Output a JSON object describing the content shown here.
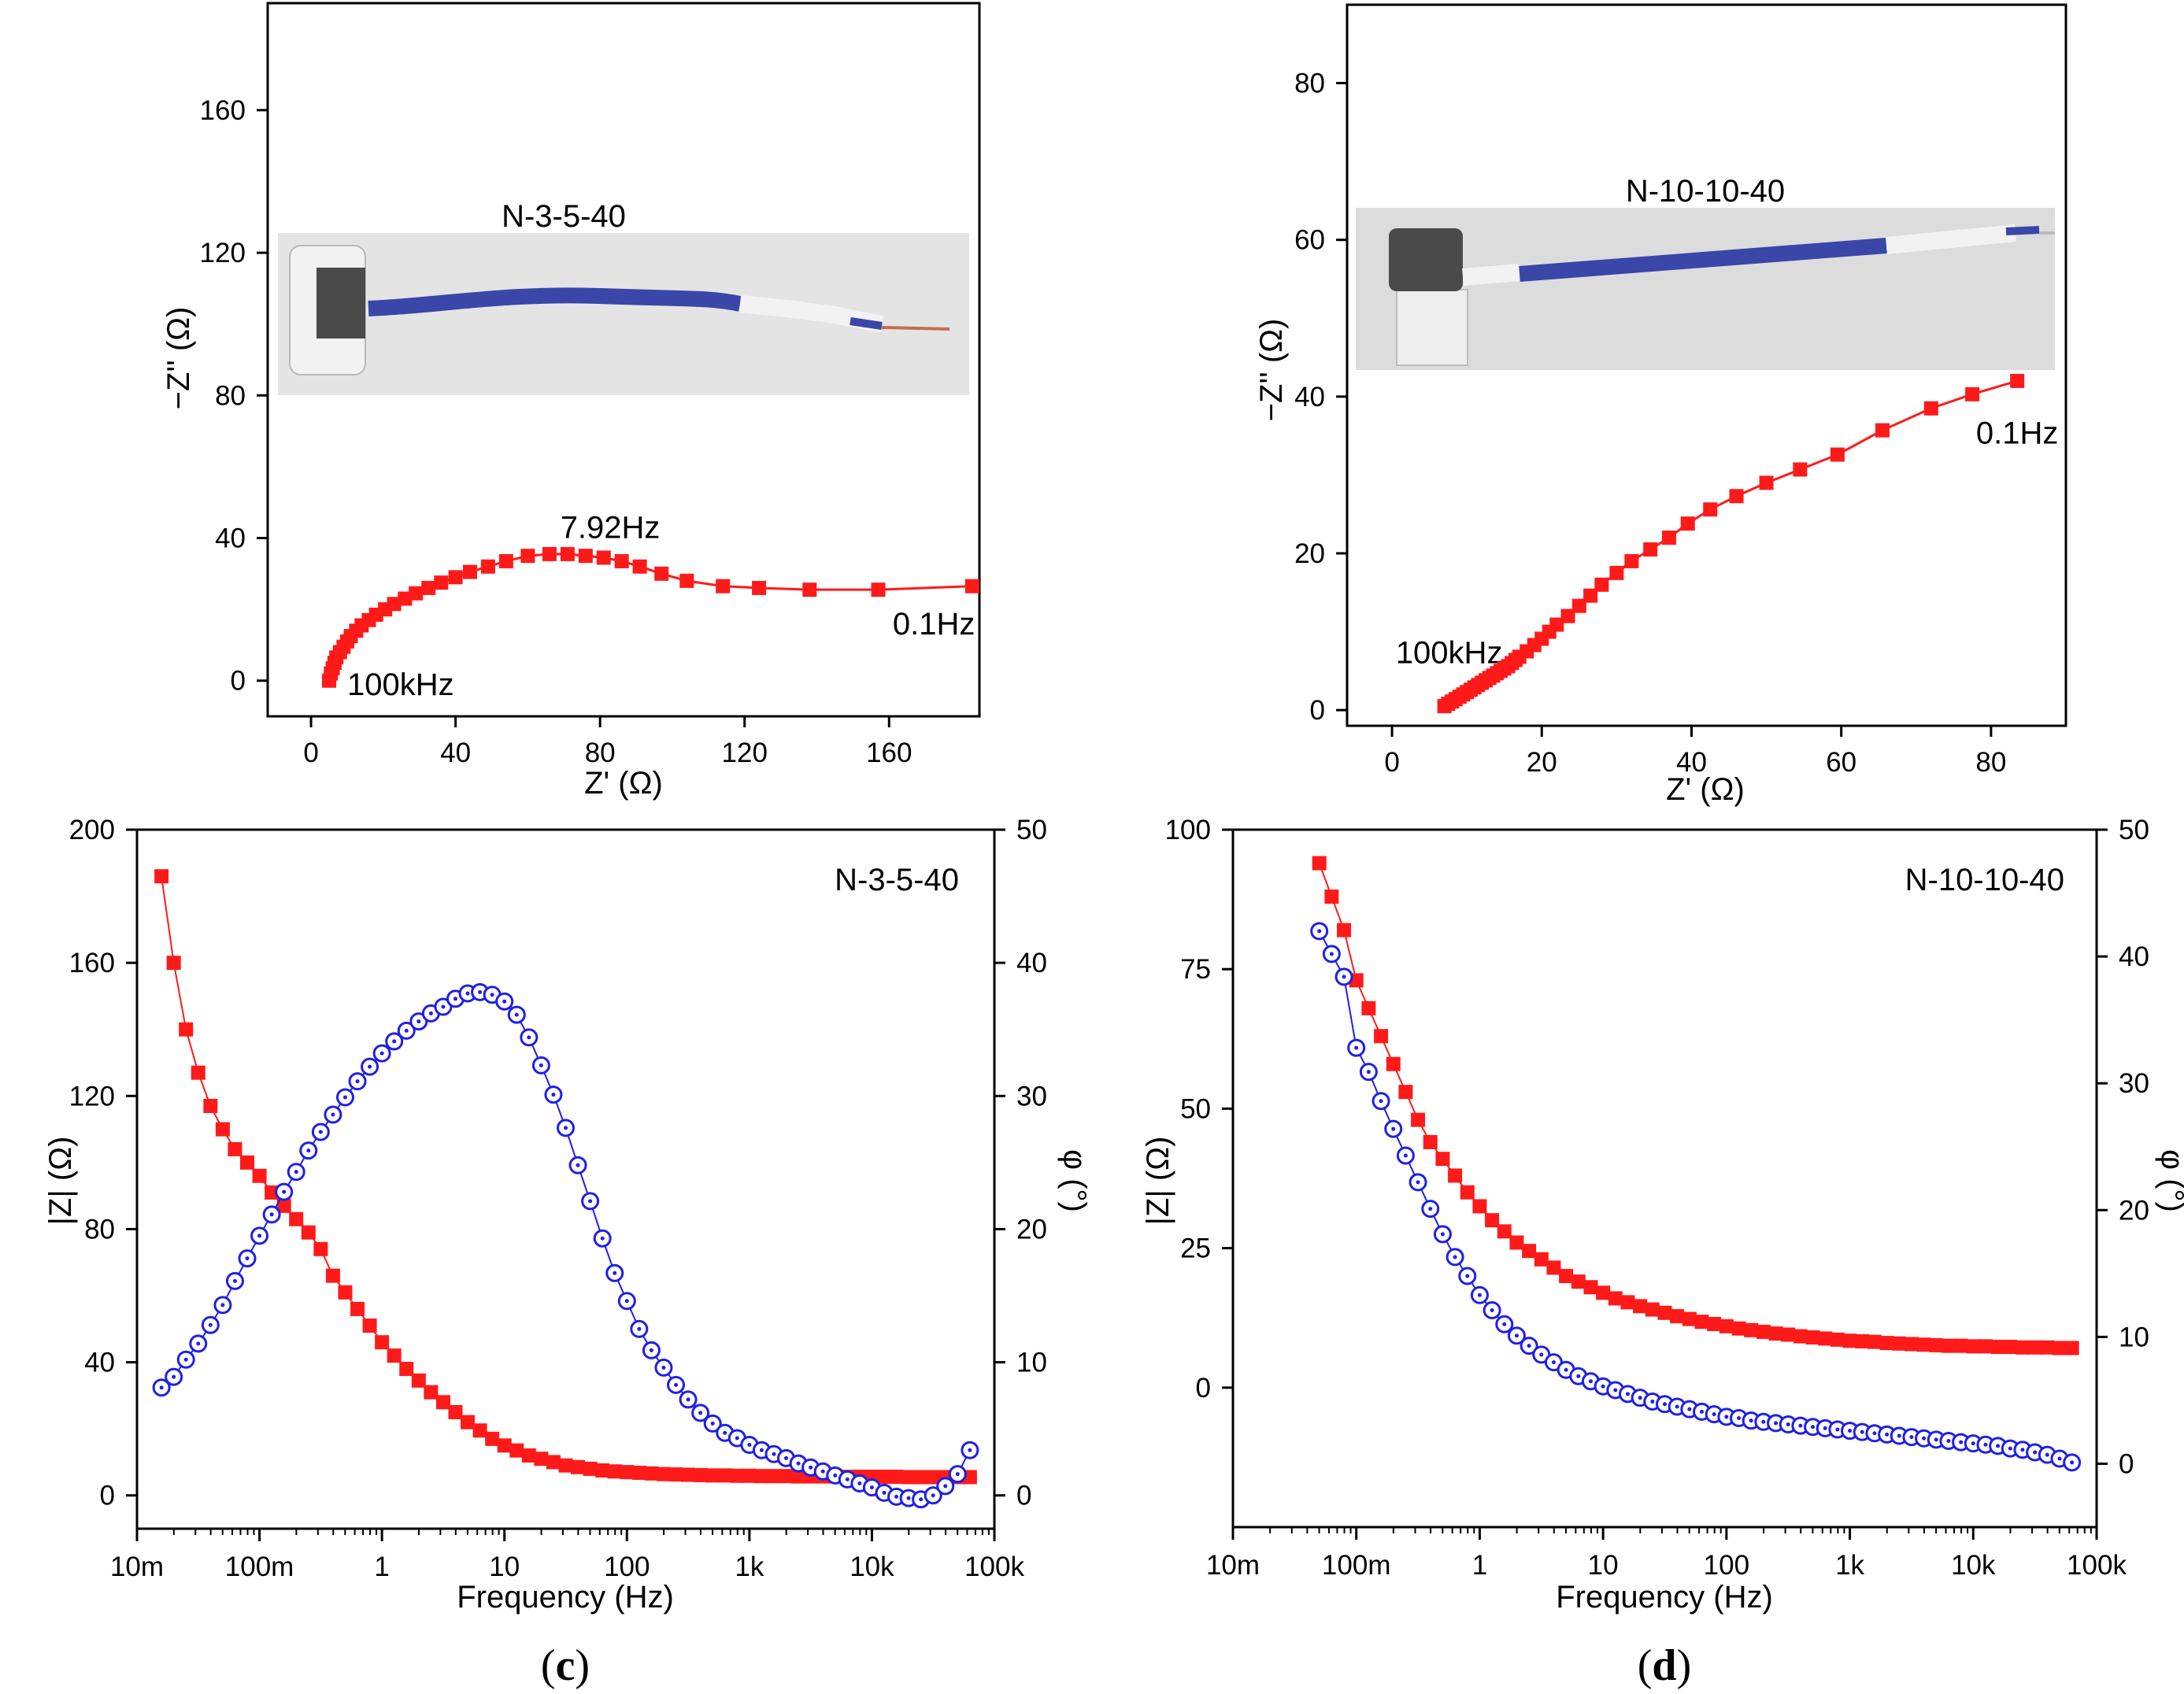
{
  "colors": {
    "red": "#ff1a1a",
    "blue": "#1f1fe6",
    "axis": "#000000",
    "cable": "#3a46a8"
  },
  "chart_data": [
    {
      "id": "a",
      "type": "scatter",
      "sample": "N-3-5-40",
      "xlabel": "Z' (Ω)",
      "ylabel": "−Z'' (Ω)",
      "xlim": [
        -12,
        185
      ],
      "ylim": [
        -10,
        190
      ],
      "xticks": [
        0,
        40,
        80,
        120,
        160
      ],
      "yticks": [
        0,
        40,
        80,
        120,
        160
      ],
      "annotations": [
        {
          "text": "7.92Hz",
          "x": 69,
          "y": 40
        },
        {
          "text": "0.1Hz",
          "x": 161,
          "y": 13
        },
        {
          "text": "100kHz",
          "x": 10,
          "y": -4
        }
      ],
      "series": [
        {
          "name": "Nyquist",
          "color": "#ff1a1a",
          "marker": "square",
          "x": [
            5,
            5.5,
            6,
            6.5,
            7,
            8,
            9,
            10,
            11,
            12.5,
            14,
            16,
            18,
            20.5,
            23,
            26,
            29,
            32.5,
            36,
            40,
            44,
            49,
            54,
            60,
            66,
            71,
            76,
            81,
            86,
            91,
            97,
            104,
            114,
            124,
            138,
            157,
            183
          ],
          "y": [
            0,
            2,
            3.5,
            5,
            6.5,
            8,
            9.5,
            11,
            12.5,
            14,
            15.5,
            17,
            18.5,
            20,
            21.5,
            23,
            24.5,
            26,
            27.5,
            29,
            30.5,
            32,
            33.5,
            35,
            35.5,
            35.5,
            35,
            34.5,
            33.5,
            32,
            30,
            28,
            26.5,
            26,
            25.5,
            25.5,
            26.5
          ]
        }
      ],
      "photo_label": "N-3-5-40"
    },
    {
      "id": "b",
      "type": "scatter",
      "sample": "N-10-10-40",
      "xlabel": "Z' (Ω)",
      "ylabel": "−Z'' (Ω)",
      "xlim": [
        -6,
        90
      ],
      "ylim": [
        -2,
        90
      ],
      "xticks": [
        0,
        20,
        40,
        60,
        80
      ],
      "yticks": [
        0,
        20,
        40,
        60,
        80
      ],
      "annotations": [
        {
          "text": "0.1Hz",
          "x": 78,
          "y": 34
        },
        {
          "text": "100kHz",
          "x": 0.5,
          "y": 6
        }
      ],
      "series": [
        {
          "name": "Nyquist",
          "color": "#ff1a1a",
          "marker": "square",
          "x": [
            7,
            7.5,
            8,
            8.5,
            9,
            9.5,
            10,
            10.5,
            11,
            11.5,
            12,
            12.5,
            13,
            13.5,
            14,
            14.5,
            15,
            15.5,
            16,
            16.5,
            17,
            18,
            19,
            20,
            21,
            22,
            23.5,
            25,
            26.5,
            28,
            30,
            32,
            34.5,
            37,
            39.5,
            42.5,
            46,
            50,
            54.5,
            59.5,
            65.5,
            72,
            77.5,
            83.5
          ],
          "y": [
            0.5,
            0.8,
            1.1,
            1.4,
            1.7,
            2,
            2.3,
            2.6,
            2.9,
            3.2,
            3.5,
            3.8,
            4.1,
            4.4,
            4.7,
            5,
            5.3,
            5.6,
            6,
            6.4,
            6.8,
            7.5,
            8.3,
            9.1,
            10,
            10.9,
            12,
            13.3,
            14.6,
            16,
            17.5,
            19,
            20.5,
            22,
            23.8,
            25.6,
            27.3,
            29,
            30.7,
            32.6,
            35.7,
            38.5,
            40.3,
            42
          ]
        }
      ],
      "photo_label": "N-10-10-40"
    },
    {
      "id": "c",
      "type": "scatter",
      "sample": "N-3-5-40",
      "xlabel": "Frequency (Hz)",
      "ylabel": "|Z| (Ω)",
      "ylabel2": "φ (°)",
      "xlim_log10": [
        -2,
        5
      ],
      "ylim": [
        -10,
        200
      ],
      "y2lim": [
        -2.5,
        50
      ],
      "xticks": [
        "10m",
        "100m",
        "1",
        "10",
        "100",
        "1k",
        "10k",
        "100k"
      ],
      "yticks": [
        0,
        40,
        80,
        120,
        160,
        200
      ],
      "y2ticks": [
        0,
        10,
        20,
        30,
        40,
        50
      ],
      "series": [
        {
          "name": "|Z|",
          "color": "#ff1a1a",
          "marker": "square",
          "axis": "left",
          "logf": [
            -1.8,
            -1.7,
            -1.6,
            -1.5,
            -1.4,
            -1.3,
            -1.2,
            -1.1,
            -1.0,
            -0.9,
            -0.8,
            -0.7,
            -0.6,
            -0.5,
            -0.4,
            -0.3,
            -0.2,
            -0.1,
            0.0,
            0.1,
            0.2,
            0.3,
            0.4,
            0.5,
            0.6,
            0.7,
            0.8,
            0.9,
            1.0,
            1.1,
            1.2,
            1.3,
            1.4,
            1.5,
            1.6,
            1.7,
            1.8,
            1.9,
            2.0,
            2.1,
            2.2,
            2.3,
            2.4,
            2.5,
            2.6,
            2.7,
            2.8,
            2.9,
            3.0,
            3.1,
            3.2,
            3.3,
            3.4,
            3.5,
            3.6,
            3.7,
            3.8,
            3.9,
            4.0,
            4.1,
            4.2,
            4.3,
            4.4,
            4.5,
            4.6,
            4.7,
            4.8
          ],
          "values": [
            186,
            160,
            140,
            127,
            117,
            110,
            104,
            100,
            96,
            91,
            87,
            83,
            79,
            74,
            66,
            61,
            56,
            51,
            46,
            42,
            38,
            34.5,
            31,
            28,
            25,
            22,
            19.5,
            17,
            15,
            13.5,
            12,
            11,
            10,
            9,
            8.5,
            8,
            7.5,
            7.2,
            7,
            6.8,
            6.6,
            6.4,
            6.3,
            6.2,
            6.1,
            6,
            6,
            5.9,
            5.9,
            5.8,
            5.8,
            5.8,
            5.7,
            5.7,
            5.7,
            5.7,
            5.6,
            5.6,
            5.6,
            5.6,
            5.6,
            5.5,
            5.5,
            5.5,
            5.5,
            5.5,
            5.5
          ]
        },
        {
          "name": "φ",
          "color": "#1f1fe6",
          "marker": "circle-dot",
          "axis": "right",
          "logf": [
            -1.8,
            -1.7,
            -1.6,
            -1.5,
            -1.4,
            -1.3,
            -1.2,
            -1.1,
            -1.0,
            -0.9,
            -0.8,
            -0.7,
            -0.6,
            -0.5,
            -0.4,
            -0.3,
            -0.2,
            -0.1,
            0.0,
            0.1,
            0.2,
            0.3,
            0.4,
            0.5,
            0.6,
            0.7,
            0.8,
            0.9,
            1.0,
            1.1,
            1.2,
            1.3,
            1.4,
            1.5,
            1.6,
            1.7,
            1.8,
            1.9,
            2.0,
            2.1,
            2.2,
            2.3,
            2.4,
            2.5,
            2.6,
            2.7,
            2.8,
            2.9,
            3.0,
            3.1,
            3.2,
            3.3,
            3.4,
            3.5,
            3.6,
            3.7,
            3.8,
            3.9,
            4.0,
            4.1,
            4.2,
            4.3,
            4.4,
            4.5,
            4.6,
            4.7,
            4.8
          ],
          "values": [
            8.1,
            8.9,
            10.2,
            11.4,
            12.8,
            14.3,
            16.1,
            17.8,
            19.5,
            21.1,
            22.8,
            24.3,
            25.9,
            27.3,
            28.6,
            29.9,
            31.1,
            32.2,
            33.2,
            34.1,
            34.9,
            35.6,
            36.2,
            36.7,
            37.3,
            37.7,
            37.8,
            37.6,
            37.1,
            36.1,
            34.4,
            32.3,
            30.1,
            27.6,
            24.8,
            22.1,
            19.3,
            16.7,
            14.6,
            12.5,
            10.9,
            9.6,
            8.3,
            7.2,
            6.2,
            5.4,
            4.7,
            4.3,
            3.8,
            3.4,
            3.1,
            2.8,
            2.4,
            2.1,
            1.8,
            1.5,
            1.2,
            0.9,
            0.6,
            0.2,
            -0.1,
            -0.2,
            -0.3,
            0.0,
            0.7,
            1.6,
            3.4
          ]
        }
      ],
      "legend_label": "N-3-5-40",
      "caption": {
        "open": "(",
        "letter": "c",
        "close": ")"
      }
    },
    {
      "id": "d",
      "type": "scatter",
      "sample": "N-10-10-40",
      "xlabel": "Frequency (Hz)",
      "ylabel": "|Z| (Ω)",
      "ylabel2": "φ (°)",
      "xlim_log10": [
        -2,
        5
      ],
      "ylim": [
        -25,
        100
      ],
      "y2lim": [
        -5,
        50
      ],
      "xticks": [
        "10m",
        "100m",
        "1",
        "10",
        "100",
        "1k",
        "10k",
        "100k"
      ],
      "yticks": [
        0,
        25,
        50,
        75,
        100
      ],
      "y2ticks": [
        0,
        10,
        20,
        30,
        40,
        50
      ],
      "series": [
        {
          "name": "|Z|",
          "color": "#ff1a1a",
          "marker": "square",
          "axis": "left",
          "logf": [
            -1.3,
            -1.2,
            -1.1,
            -1.0,
            -0.9,
            -0.8,
            -0.7,
            -0.6,
            -0.5,
            -0.4,
            -0.3,
            -0.2,
            -0.1,
            0.0,
            0.1,
            0.2,
            0.3,
            0.4,
            0.5,
            0.6,
            0.7,
            0.8,
            0.9,
            1.0,
            1.1,
            1.2,
            1.3,
            1.4,
            1.5,
            1.6,
            1.7,
            1.8,
            1.9,
            2.0,
            2.1,
            2.2,
            2.3,
            2.4,
            2.5,
            2.6,
            2.7,
            2.8,
            2.9,
            3.0,
            3.1,
            3.2,
            3.3,
            3.4,
            3.5,
            3.6,
            3.7,
            3.8,
            3.9,
            4.0,
            4.1,
            4.2,
            4.3,
            4.4,
            4.5,
            4.6,
            4.7,
            4.8
          ],
          "values": [
            94,
            88,
            82,
            73,
            68,
            63,
            58,
            53,
            48,
            44,
            41,
            38,
            35,
            32.5,
            30,
            28,
            26,
            24.5,
            23,
            21.5,
            20,
            19,
            18,
            17,
            16,
            15.3,
            14.6,
            14,
            13.4,
            12.8,
            12.3,
            11.8,
            11.4,
            11,
            10.6,
            10.3,
            10,
            9.7,
            9.5,
            9.2,
            9,
            8.8,
            8.6,
            8.4,
            8.3,
            8.2,
            8,
            7.9,
            7.8,
            7.7,
            7.6,
            7.5,
            7.5,
            7.4,
            7.4,
            7.3,
            7.3,
            7.2,
            7.2,
            7.2,
            7.1,
            7.1
          ]
        },
        {
          "name": "φ",
          "color": "#1f1fe6",
          "marker": "circle-dot",
          "axis": "right",
          "logf": [
            -1.3,
            -1.2,
            -1.1,
            -1.0,
            -0.9,
            -0.8,
            -0.7,
            -0.6,
            -0.5,
            -0.4,
            -0.3,
            -0.2,
            -0.1,
            0.0,
            0.1,
            0.2,
            0.3,
            0.4,
            0.5,
            0.6,
            0.7,
            0.8,
            0.9,
            1.0,
            1.1,
            1.2,
            1.3,
            1.4,
            1.5,
            1.6,
            1.7,
            1.8,
            1.9,
            2.0,
            2.1,
            2.2,
            2.3,
            2.4,
            2.5,
            2.6,
            2.7,
            2.8,
            2.9,
            3.0,
            3.1,
            3.2,
            3.3,
            3.4,
            3.5,
            3.6,
            3.7,
            3.8,
            3.9,
            4.0,
            4.1,
            4.2,
            4.3,
            4.4,
            4.5,
            4.6,
            4.7,
            4.8
          ],
          "values": [
            42,
            40.2,
            38.4,
            32.8,
            30.9,
            28.6,
            26.4,
            24.3,
            22.2,
            20.1,
            18.1,
            16.3,
            14.8,
            13.3,
            12.1,
            11.0,
            10.1,
            9.3,
            8.6,
            8.0,
            7.4,
            6.9,
            6.5,
            6.1,
            5.8,
            5.5,
            5.2,
            4.9,
            4.7,
            4.5,
            4.3,
            4.1,
            3.9,
            3.7,
            3.6,
            3.4,
            3.3,
            3.2,
            3.1,
            3.0,
            2.9,
            2.8,
            2.7,
            2.6,
            2.5,
            2.4,
            2.3,
            2.2,
            2.1,
            2.0,
            1.9,
            1.8,
            1.7,
            1.6,
            1.5,
            1.4,
            1.2,
            1.1,
            0.9,
            0.7,
            0.4,
            0.1
          ]
        }
      ],
      "legend_label": "N-10-10-40",
      "caption": {
        "open": "(",
        "letter": "d",
        "close": ")"
      }
    }
  ]
}
